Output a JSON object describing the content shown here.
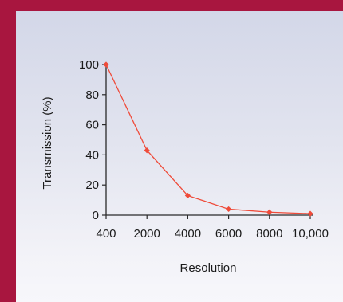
{
  "colors": {
    "background": "#a8163f",
    "panel": "#e6e7f0",
    "series": "#ef4b3a",
    "axis": "#2a2a2a"
  },
  "chart_data": {
    "type": "line",
    "title": "",
    "xlabel": "Resolution",
    "ylabel": "Transmission (%)",
    "categories": [
      "400",
      "2000",
      "4000",
      "6000",
      "8000",
      "10,000"
    ],
    "series": [
      {
        "values": [
          100,
          43,
          13,
          4,
          2,
          1
        ]
      }
    ],
    "ylim": [
      0,
      100
    ],
    "yticks": [
      0,
      20,
      40,
      60,
      80,
      100
    ],
    "grid": false,
    "legend": "none"
  }
}
